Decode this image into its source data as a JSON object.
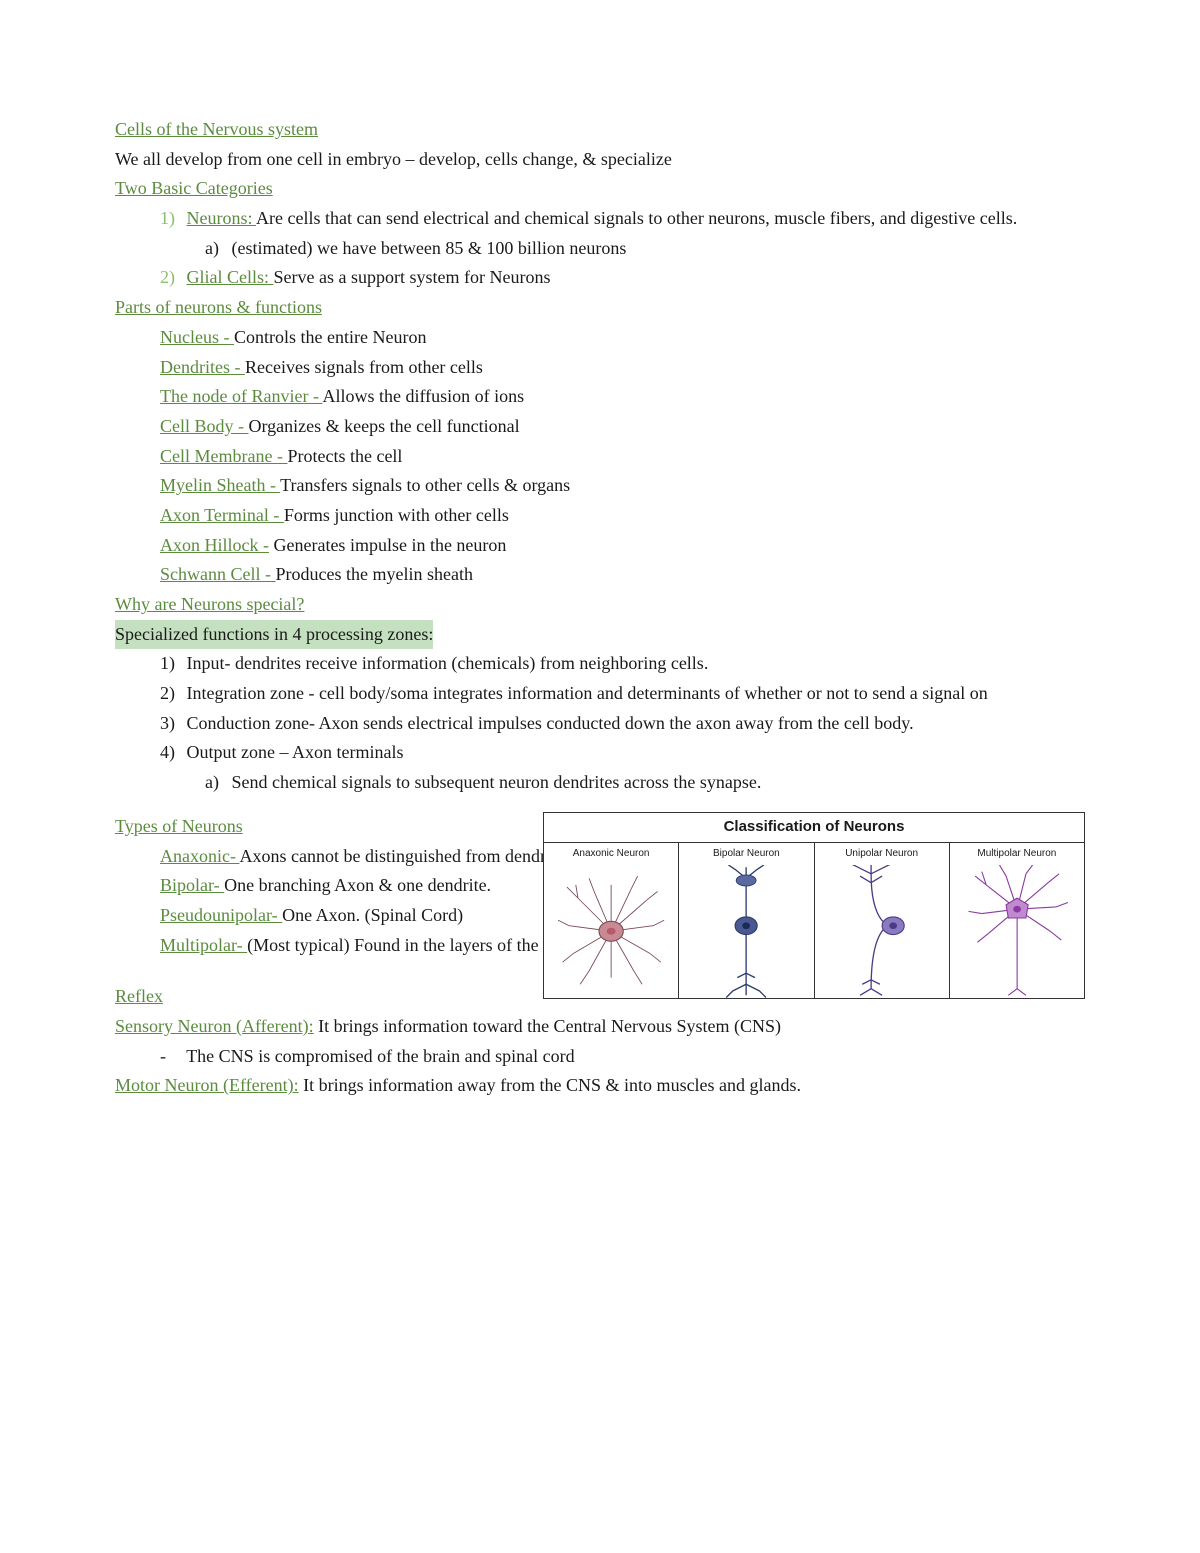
{
  "colors": {
    "heading_green": "#5b8c3e",
    "list_num_green": "#8cbf6b",
    "body_text": "#1a1a1a",
    "highlight_bg": "#c5e0c0",
    "anaxonic": "#b85a6a",
    "bipolar": "#3a4a8c",
    "unipolar": "#6a5aa8",
    "multipolar": "#a85ac0"
  },
  "fontsize": {
    "body": 18,
    "figure_title": 15,
    "figure_label": 10
  },
  "headings": {
    "cellsNervous": "Cells of the Nervous system",
    "twoBasic": "Two Basic Categories",
    "partsNeurons": "Parts of neurons & functions",
    "whySpecial": "Why are Neurons special?",
    "typesNeurons": "Types of Neurons",
    "reflex": "Reflex"
  },
  "body": {
    "intro": "We all develop from one cell in embryo – develop, cells change, & specialize",
    "neurons_label": "Neurons: ",
    "neurons_desc": "Are cells that can send electrical and chemical signals to other neurons, muscle fibers, and digestive cells.",
    "neurons_a": "(estimated) we have between 85 & 100 billion neurons",
    "glial_label": "Glial Cells: ",
    "glial_desc": "Serve as a support system for Neurons",
    "specialized_hl": "Specialized functions in 4 processing zones:",
    "zone1": "Input- dendrites receive information (chemicals) from neighboring cells.",
    "zone2": "Integration zone - cell body/soma integrates information and determinants of whether or not to send a signal on",
    "zone3": "Conduction zone- Axon sends electrical impulses conducted down the axon away from the cell body.",
    "zone4": "Output zone – Axon terminals",
    "zone4a": "Send chemical signals to subsequent neuron dendrites across the synapse.",
    "cns_note": "The CNS is compromised of the brain and spinal cord",
    "sensory_label": "Sensory Neuron (Afferent):",
    "sensory_desc": " It brings information toward the Central Nervous System (CNS)",
    "motor_label": "Motor Neuron (Efferent):",
    "motor_desc": " It brings information away from the CNS & into muscles and glands."
  },
  "parts": [
    {
      "term": "Nucleus - ",
      "desc": "Controls the entire Neuron"
    },
    {
      "term": "Dendrites - ",
      "desc": "Receives signals from other cells"
    },
    {
      "term": "The node of Ranvier - ",
      "desc": "Allows the diffusion of ions"
    },
    {
      "term": "Cell Body - ",
      "desc": "Organizes & keeps the cell functional"
    },
    {
      "term": "Cell Membrane - ",
      "desc": "Protects the cell"
    },
    {
      "term": "Myelin Sheath - ",
      "desc": "Transfers signals to other cells & organs"
    },
    {
      "term": "Axon Terminal - ",
      "desc": "Forms junction with other cells"
    },
    {
      "term": "Axon Hillock -",
      "desc": " Generates impulse in the neuron"
    },
    {
      "term": "Schwann Cell - ",
      "desc": "Produces the myelin sheath"
    }
  ],
  "types": [
    {
      "term": "Anaxonic- ",
      "desc": "Axons cannot be distinguished from dendrites."
    },
    {
      "term": "Bipolar- ",
      "desc": "One branching Axon & one dendrite."
    },
    {
      "term": "Pseudounipolar- ",
      "desc": "One Axon. (Spinal Cord)"
    },
    {
      "term": "Multipolar- ",
      "desc": "(Most typical) Found in the layers of the cortex"
    }
  ],
  "markers": {
    "n1": "1)",
    "n2": "2)",
    "n3": "3)",
    "n4": "4)",
    "a": "a)",
    "dash": "-"
  },
  "figure": {
    "title": "Classification of Neurons",
    "labels": [
      "Anaxonic Neuron",
      "Bipolar Neuron",
      "Unipolar Neuron",
      "Multipolar Neuron"
    ]
  }
}
